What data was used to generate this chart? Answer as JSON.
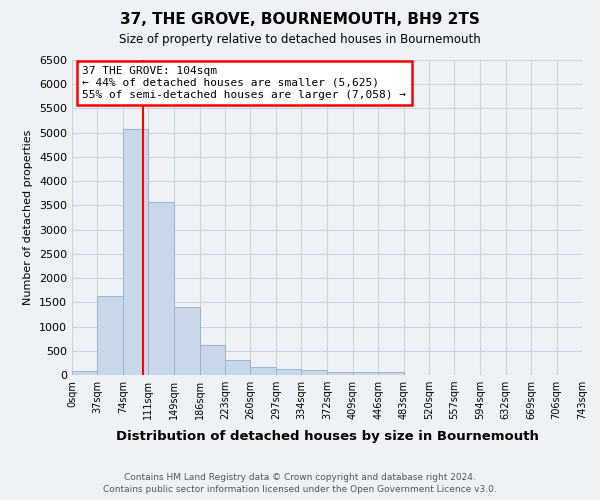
{
  "title": "37, THE GROVE, BOURNEMOUTH, BH9 2TS",
  "subtitle": "Size of property relative to detached houses in Bournemouth",
  "xlabel": "Distribution of detached houses by size in Bournemouth",
  "ylabel": "Number of detached properties",
  "footer1": "Contains HM Land Registry data © Crown copyright and database right 2024.",
  "footer2": "Contains public sector information licensed under the Open Government Licence v3.0.",
  "bin_edges": [
    0,
    37,
    74,
    111,
    149,
    186,
    223,
    260,
    297,
    334,
    372,
    409,
    446,
    483,
    520,
    557,
    594,
    632,
    669,
    706,
    743
  ],
  "bin_counts": [
    75,
    1625,
    5075,
    3575,
    1400,
    625,
    300,
    155,
    130,
    100,
    55,
    55,
    55,
    0,
    0,
    0,
    0,
    0,
    0,
    0
  ],
  "bar_color": "#c8d8ea",
  "bar_edge_color": "#9ab4cc",
  "vline_x": 104,
  "vline_color": "red",
  "annotation_line1": "37 THE GROVE: 104sqm",
  "annotation_line2": "← 44% of detached houses are smaller (5,625)",
  "annotation_line3": "55% of semi-detached houses are larger (7,058) →",
  "annotation_box_color": "white",
  "annotation_box_edge_color": "red",
  "ylim": [
    0,
    6500
  ],
  "yticks": [
    0,
    500,
    1000,
    1500,
    2000,
    2500,
    3000,
    3500,
    4000,
    4500,
    5000,
    5500,
    6000,
    6500
  ],
  "grid_color": "#c8d4de",
  "bg_color": "#eef2f6"
}
